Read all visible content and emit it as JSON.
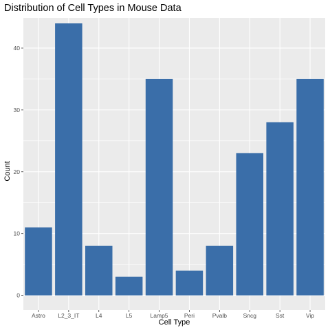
{
  "chart_data": {
    "type": "bar",
    "title": "Distribution of Cell Types in Mouse Data",
    "xlabel": "Cell Type",
    "ylabel": "Count",
    "categories": [
      "Astro",
      "L2_3_IT",
      "L4",
      "L5",
      "Lamp5",
      "Peri",
      "Pvalb",
      "Sncg",
      "Sst",
      "Vip"
    ],
    "values": [
      11,
      44,
      8,
      3,
      35,
      4,
      8,
      23,
      28,
      35
    ],
    "ylim": [
      0,
      46
    ],
    "yticks": [
      0,
      10,
      20,
      30,
      40
    ],
    "bar_color": "#3a6ea9",
    "panel_background": "#ebebeb",
    "grid_color": "#ffffff",
    "grid": true
  }
}
